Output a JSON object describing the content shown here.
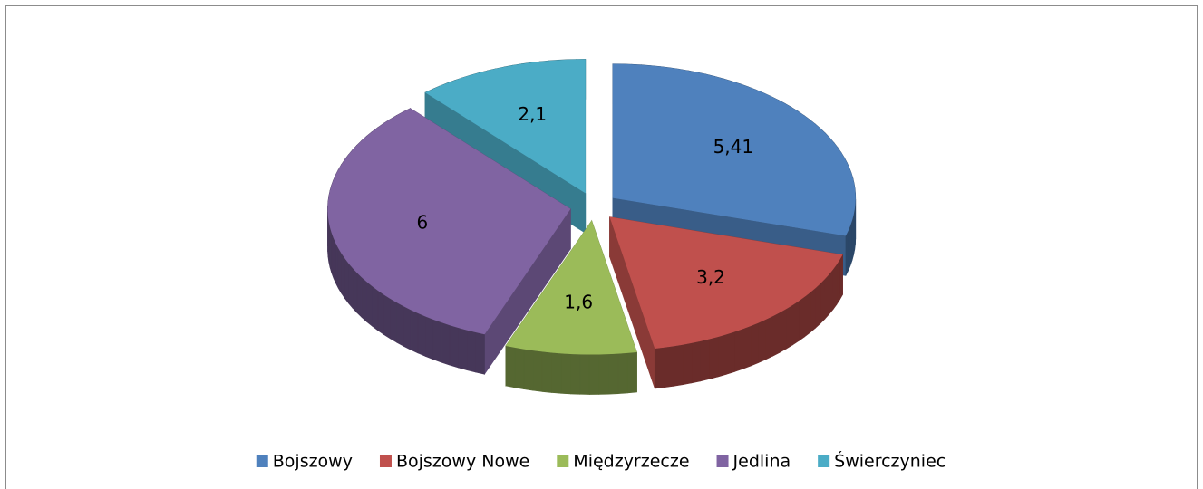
{
  "chart_data": {
    "type": "pie",
    "categories": [
      "Bojszowy",
      "Bojszowy Nowe",
      "Międzyrzecze",
      "Jedlina",
      "Świerczyniec"
    ],
    "values": [
      5.41,
      3.2,
      1.6,
      6,
      2.1
    ],
    "value_labels": [
      "5,41",
      "3,2",
      "1,6",
      "6",
      "2,1"
    ],
    "colors": [
      "#4f81bd",
      "#c0504d",
      "#9bbb59",
      "#8064a2",
      "#4bacc6"
    ],
    "legend": "bottom"
  }
}
